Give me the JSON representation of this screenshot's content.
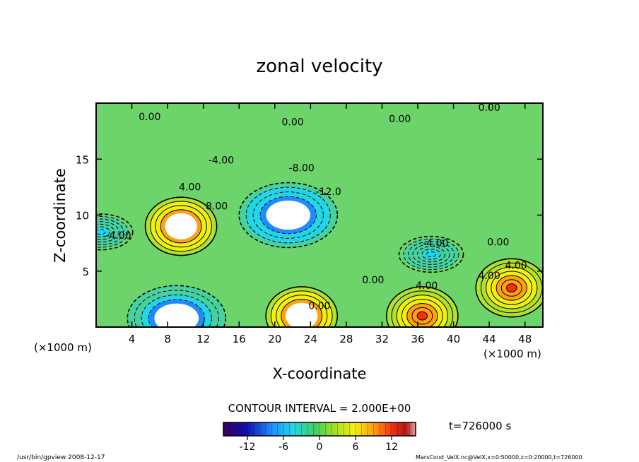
{
  "chart_data": {
    "type": "heatmap",
    "title": "zonal velocity",
    "xlabel": "X-coordinate",
    "ylabel": "Z-coordinate",
    "x_units": "(×1000 m)",
    "z_units": "(×1000 m)",
    "xlim": [
      0,
      50
    ],
    "ylim": [
      0,
      20
    ],
    "x_ticks": [
      4,
      8,
      12,
      16,
      20,
      24,
      28,
      32,
      36,
      40,
      44,
      48
    ],
    "y_ticks": [
      5,
      10,
      15
    ],
    "contour_interval_text": "CONTOUR INTERVAL = 2.000E+00",
    "time_text": "t=726000 s",
    "colorbar": {
      "range": [
        -16,
        16
      ],
      "ticks": [
        -12,
        -6,
        0,
        6,
        12
      ]
    },
    "contour_labels": [
      "0.00",
      "0.00",
      "0.00",
      "0.00",
      "-4.00",
      "-8.00",
      "-12.0",
      "4.00",
      "8.00",
      "-4.00",
      "0.00",
      "4.00",
      "-4.00",
      "0.00",
      "4.00",
      "0.00",
      "4.00"
    ],
    "features": [
      {
        "x": 21.5,
        "z": 10.0,
        "value": -16,
        "kind": "negative core"
      },
      {
        "x": 9.5,
        "z": 9.0,
        "value": 16,
        "kind": "positive core"
      },
      {
        "x": 23.0,
        "z": 1.0,
        "value": 16,
        "kind": "positive core"
      },
      {
        "x": 9.0,
        "z": 0.8,
        "value": -14,
        "kind": "negative core"
      },
      {
        "x": 36.5,
        "z": 1.0,
        "value": 12,
        "kind": "positive core"
      },
      {
        "x": 46.5,
        "z": 3.5,
        "value": 12,
        "kind": "positive core"
      },
      {
        "x": 37.5,
        "z": 6.5,
        "value": -6,
        "kind": "negative region"
      },
      {
        "x": 0.5,
        "z": 8.5,
        "value": -6,
        "kind": "negative region"
      }
    ]
  },
  "footer": {
    "left": "/usr/bin/gpview   2008-12-17",
    "right": "MarsCond_VelX.nc@VelX,x=0:50000,z=0:20000,t=726000"
  },
  "colors": {
    "frame": "#000000",
    "background": "#ffffff"
  }
}
